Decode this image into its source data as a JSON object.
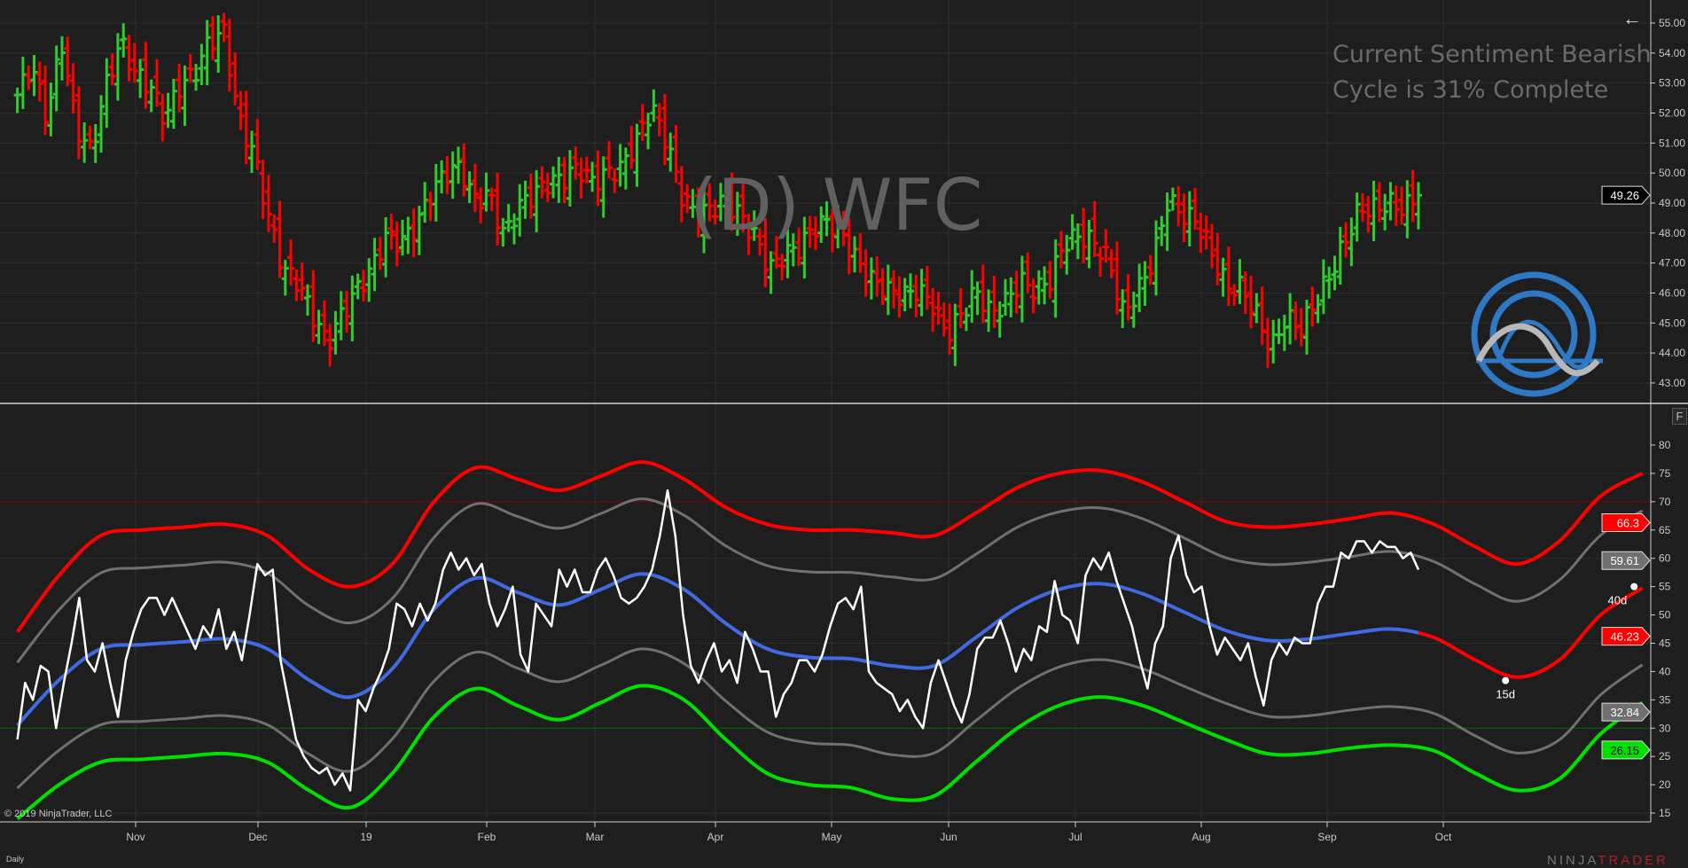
{
  "header": {
    "back_icon": "arrow-left-icon",
    "symbol_label": "(D) WFC"
  },
  "sentiment": {
    "line1": "Current Sentiment Bearish",
    "line2": "Cycle is 31% Complete"
  },
  "footer": {
    "copyright": "© 2019 NinjaTrader, LLC",
    "interval": "Daily",
    "brand_a": "NINJA",
    "brand_b": "TRADER",
    "brand_mark": "®"
  },
  "panel_button": "F",
  "colors": {
    "background": "#1e1e1e",
    "up_bar": "#2ecc2e",
    "down_bar": "#ff0000",
    "oscillator": "#ffffff",
    "mid_line": "#4169e1",
    "projection": "#ff0000",
    "upper_band": "#ff0000",
    "lower_band": "#00e000",
    "inner_band": "#707070"
  },
  "chart_data": [
    {
      "type": "ohlc",
      "symbol": "WFC",
      "x_range": [
        "2018-10-03",
        "2019-09-25"
      ],
      "ylim": [
        42.5,
        55.5
      ],
      "yticks": [
        "55.00",
        "54.00",
        "53.00",
        "52.00",
        "51.00",
        "50.00",
        "49.00",
        "48.00",
        "47.00",
        "46.00",
        "45.00",
        "44.00",
        "43.00"
      ],
      "last_price": "49.26",
      "closes": [
        52.6,
        53.6,
        51.8,
        54.4,
        51.5,
        50.7,
        52.9,
        54.4,
        53.3,
        52.9,
        51.8,
        52.9,
        53.3,
        54.4,
        54.7,
        51.8,
        50.7,
        48.6,
        46.8,
        46.4,
        45.3,
        44.3,
        45.3,
        46.1,
        46.8,
        47.9,
        47.7,
        48.2,
        49.3,
        50.0,
        50.2,
        49.1,
        49.3,
        47.9,
        48.9,
        49.3,
        49.7,
        49.8,
        50.2,
        49.7,
        50.0,
        50.2,
        51.1,
        52.2,
        51.1,
        49.3,
        48.6,
        48.8,
        49.1,
        48.6,
        47.9,
        46.8,
        47.3,
        47.5,
        48.2,
        48.4,
        47.9,
        47.0,
        46.4,
        46.1,
        45.9,
        46.1,
        45.7,
        44.6,
        45.3,
        46.1,
        45.3,
        45.7,
        46.4,
        46.1,
        46.4,
        47.7,
        47.9,
        47.7,
        47.1,
        45.3,
        46.1,
        47.1,
        49.1,
        48.6,
        48.4,
        47.3,
        46.2,
        46.2,
        45.3,
        44.1,
        45.2,
        44.8,
        45.7,
        46.6,
        47.7,
        48.8,
        48.8,
        49.0,
        48.8,
        49.26
      ]
    },
    {
      "type": "line",
      "ylim": [
        13,
        84
      ],
      "yticks": [
        "80",
        "75",
        "70",
        "65",
        "60",
        "55",
        "50",
        "45",
        "40",
        "35",
        "30",
        "25",
        "20",
        "15"
      ],
      "reference_lines": [
        {
          "value": 70,
          "color": "#8b0000"
        },
        {
          "value": 30,
          "color": "#006400"
        }
      ],
      "oscillator": {
        "x_range": [
          "2018-10-03",
          "2019-09-25"
        ],
        "values": [
          28,
          38,
          35,
          41,
          40,
          30,
          38,
          45,
          53,
          42,
          40,
          45,
          38,
          32,
          42,
          47,
          51,
          53,
          53,
          50,
          53,
          50,
          47,
          44,
          48,
          46,
          51,
          44,
          47,
          42,
          50,
          59,
          57,
          58,
          42,
          35,
          28,
          25,
          23,
          22,
          23,
          20,
          22,
          19,
          35,
          33,
          37,
          40,
          44,
          52,
          51,
          48,
          52,
          49,
          52,
          58,
          61,
          58,
          60,
          57,
          59,
          52,
          48,
          51,
          55,
          43,
          40,
          52,
          50,
          48,
          58,
          55,
          58,
          54,
          54,
          58,
          60,
          57,
          53,
          52,
          53,
          55,
          58,
          64,
          72,
          64,
          50,
          41,
          38,
          42,
          45,
          40,
          42,
          38,
          47,
          44,
          40,
          40,
          32,
          36,
          38,
          42,
          42,
          40,
          43,
          48,
          52,
          53,
          51,
          55,
          40,
          38,
          37,
          36,
          33,
          35,
          32,
          30,
          38,
          42,
          38,
          34,
          31,
          36,
          44,
          46,
          46,
          49,
          45,
          40,
          44,
          42,
          48,
          47,
          56,
          50,
          49,
          45,
          57,
          60,
          58,
          61,
          56,
          52,
          48,
          42,
          37,
          45,
          48,
          60,
          64,
          57,
          54,
          55,
          48,
          43,
          46,
          44,
          42,
          45,
          39,
          34,
          42,
          45,
          43,
          46,
          45,
          45,
          52,
          55,
          55,
          61,
          60,
          63,
          63,
          61,
          63,
          62,
          62,
          60,
          61,
          58
        ]
      },
      "bands": {
        "x_range": [
          "2018-10-03",
          "2019-11-18"
        ],
        "projection_start": "2019-09-25",
        "upper": [
          47,
          57,
          64,
          65,
          65.5,
          66,
          64,
          58,
          55,
          59,
          70,
          76,
          74,
          72,
          74.5,
          77,
          74,
          69,
          66,
          65,
          65,
          64.5,
          64,
          68,
          72.5,
          75,
          75.5,
          73.5,
          70,
          66.5,
          65.5,
          66,
          67,
          68,
          66,
          62,
          59,
          63,
          71,
          75
        ],
        "upper_inner": [
          41.6,
          50.9,
          57.4,
          58.3,
          58.8,
          59.3,
          57.4,
          51.6,
          48.6,
          52.9,
          63.7,
          69.6,
          67.4,
          65.3,
          67.9,
          70.5,
          67.6,
          62.2,
          58.7,
          57.6,
          57.5,
          56.7,
          56.4,
          60.7,
          65.5,
          68.2,
          68.9,
          67.0,
          63.6,
          60.1,
          58.9,
          59.3,
          60.3,
          61.2,
          59.4,
          55.4,
          52.4,
          56.1,
          64.1,
          68.4
        ],
        "mid": [
          30.5,
          38.5,
          44,
          44.75,
          45.25,
          45.75,
          44,
          38.5,
          35.5,
          40.5,
          51,
          56.5,
          54,
          51.75,
          54.5,
          57.25,
          54.5,
          48.5,
          44,
          42.5,
          42.25,
          41,
          41,
          46,
          51.25,
          54.5,
          55.5,
          53.75,
          50.5,
          47.25,
          45.5,
          45.75,
          46.75,
          47.5,
          46,
          42,
          39,
          42,
          50,
          54.75
        ],
        "lower_inner": [
          19.4,
          26.1,
          30.6,
          31.2,
          31.7,
          32.2,
          30.6,
          25.4,
          22.4,
          28.1,
          38.3,
          43.4,
          40.6,
          38.2,
          41.1,
          44.0,
          41.4,
          34.8,
          29.3,
          27.4,
          27.0,
          25.3,
          25.6,
          31.3,
          37.0,
          40.8,
          42.1,
          40.5,
          37.4,
          34.4,
          32.1,
          32.2,
          33.2,
          33.8,
          32.6,
          28.6,
          25.6,
          27.9,
          35.9,
          41.2
        ],
        "lower": [
          14,
          20,
          24,
          24.5,
          25,
          25.5,
          24,
          19,
          16,
          22,
          32,
          37,
          34,
          31.5,
          34.5,
          37.5,
          35,
          28,
          22,
          20,
          19.5,
          17.5,
          18,
          24,
          30,
          34,
          35.5,
          34,
          31,
          28,
          25.5,
          25.5,
          26.5,
          27,
          26,
          22,
          19,
          21,
          29,
          34.5
        ]
      },
      "annotations": [
        {
          "label": "15d",
          "date": "2019-10-16",
          "value": 38.4
        },
        {
          "label": "40d",
          "date": "2019-11-16",
          "value": 55
        }
      ],
      "value_labels": [
        {
          "text": "66.3",
          "value": 66.3,
          "color": "#ff0000",
          "fg": "#ffffff"
        },
        {
          "text": "59.61",
          "value": 59.61,
          "color": "#707070",
          "fg": "#ffffff"
        },
        {
          "text": "46.23",
          "value": 46.23,
          "color": "#ff0000",
          "fg": "#ffffff"
        },
        {
          "text": "32.84",
          "value": 32.84,
          "color": "#707070",
          "fg": "#ffffff"
        },
        {
          "text": "26.15",
          "value": 26.15,
          "color": "#00e000",
          "fg": "#000000"
        }
      ]
    }
  ],
  "xaxis": {
    "ticks": [
      {
        "label": "Nov",
        "date": "2018-11-01"
      },
      {
        "label": "Dec",
        "date": "2018-12-01"
      },
      {
        "label": "19",
        "date": "2019-01-02"
      },
      {
        "label": "Feb",
        "date": "2019-02-01"
      },
      {
        "label": "Mar",
        "date": "2019-03-01"
      },
      {
        "label": "Apr",
        "date": "2019-04-01"
      },
      {
        "label": "May",
        "date": "2019-05-01"
      },
      {
        "label": "Jun",
        "date": "2019-06-03"
      },
      {
        "label": "Jul",
        "date": "2019-07-01"
      },
      {
        "label": "Aug",
        "date": "2019-08-01"
      },
      {
        "label": "Sep",
        "date": "2019-09-03"
      },
      {
        "label": "Oct",
        "date": "2019-10-01"
      }
    ]
  }
}
